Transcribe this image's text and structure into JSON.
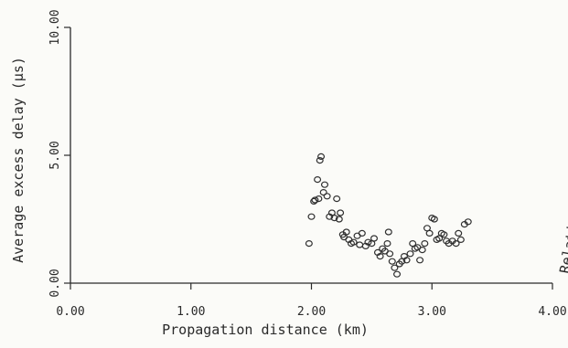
{
  "chart_data": {
    "type": "scatter",
    "xlabel": "Propagation distance (km)",
    "ylabel": "Average excess delay (µs)",
    "right_label": "Relative power density",
    "xlim": [
      0,
      4
    ],
    "ylim": [
      0,
      10
    ],
    "xticks": [
      "0.00",
      "1.00",
      "2.00",
      "3.00",
      "4.00"
    ],
    "yticks": [
      "0.00",
      "5.00",
      "10.00"
    ],
    "grid": false,
    "points": [
      [
        1.98,
        1.55
      ],
      [
        2.0,
        2.6
      ],
      [
        2.02,
        3.2
      ],
      [
        2.03,
        3.25
      ],
      [
        2.05,
        4.05
      ],
      [
        2.06,
        3.3
      ],
      [
        2.07,
        4.8
      ],
      [
        2.08,
        4.95
      ],
      [
        2.1,
        3.55
      ],
      [
        2.11,
        3.85
      ],
      [
        2.13,
        3.4
      ],
      [
        2.15,
        2.6
      ],
      [
        2.17,
        2.75
      ],
      [
        2.19,
        2.55
      ],
      [
        2.21,
        3.3
      ],
      [
        2.23,
        2.5
      ],
      [
        2.24,
        2.75
      ],
      [
        2.26,
        1.9
      ],
      [
        2.27,
        1.8
      ],
      [
        2.29,
        2.0
      ],
      [
        2.31,
        1.7
      ],
      [
        2.33,
        1.55
      ],
      [
        2.35,
        1.6
      ],
      [
        2.38,
        1.85
      ],
      [
        2.4,
        1.5
      ],
      [
        2.42,
        1.95
      ],
      [
        2.45,
        1.45
      ],
      [
        2.47,
        1.6
      ],
      [
        2.5,
        1.55
      ],
      [
        2.52,
        1.75
      ],
      [
        2.55,
        1.2
      ],
      [
        2.57,
        1.05
      ],
      [
        2.59,
        1.35
      ],
      [
        2.61,
        1.25
      ],
      [
        2.63,
        1.55
      ],
      [
        2.64,
        2.0
      ],
      [
        2.65,
        1.15
      ],
      [
        2.67,
        0.85
      ],
      [
        2.69,
        0.6
      ],
      [
        2.71,
        0.35
      ],
      [
        2.73,
        0.75
      ],
      [
        2.75,
        0.85
      ],
      [
        2.77,
        1.05
      ],
      [
        2.79,
        0.9
      ],
      [
        2.82,
        1.15
      ],
      [
        2.84,
        1.55
      ],
      [
        2.86,
        1.35
      ],
      [
        2.88,
        1.4
      ],
      [
        2.9,
        0.9
      ],
      [
        2.92,
        1.3
      ],
      [
        2.94,
        1.55
      ],
      [
        2.96,
        2.15
      ],
      [
        2.98,
        1.95
      ],
      [
        3.0,
        2.55
      ],
      [
        3.02,
        2.5
      ],
      [
        3.04,
        1.7
      ],
      [
        3.06,
        1.75
      ],
      [
        3.08,
        1.95
      ],
      [
        3.1,
        1.9
      ],
      [
        3.12,
        1.65
      ],
      [
        3.14,
        1.55
      ],
      [
        3.17,
        1.65
      ],
      [
        3.2,
        1.55
      ],
      [
        3.22,
        1.95
      ],
      [
        3.24,
        1.7
      ],
      [
        3.27,
        2.3
      ],
      [
        3.3,
        2.4
      ]
    ]
  }
}
